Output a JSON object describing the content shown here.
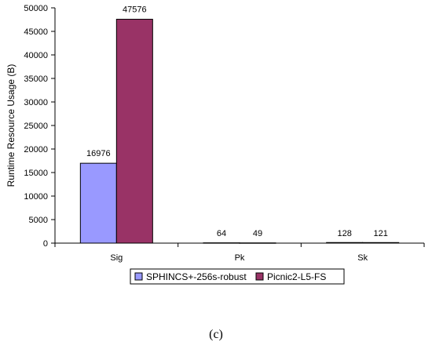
{
  "caption": "(c)",
  "chart_data": {
    "type": "bar",
    "categories": [
      "Sig",
      "Pk",
      "Sk"
    ],
    "series": [
      {
        "name": "SPHINCS+-256s-robust",
        "values": [
          16976,
          64,
          128
        ],
        "color": "#9999ff"
      },
      {
        "name": "Picnic2-L5-FS",
        "values": [
          47576,
          49,
          121
        ],
        "color": "#993366"
      }
    ],
    "ylabel": "Runtime Resource Usage (B)",
    "xlabel": "",
    "ylim": [
      0,
      50000
    ],
    "yticks": [
      0,
      5000,
      10000,
      15000,
      20000,
      25000,
      30000,
      35000,
      40000,
      45000,
      50000
    ],
    "grid": false,
    "legend_position": "bottom-center",
    "data_labels": true
  }
}
